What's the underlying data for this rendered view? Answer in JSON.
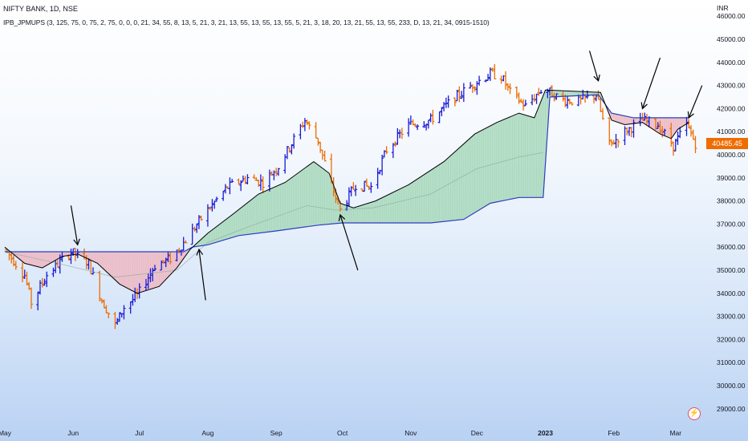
{
  "header": {
    "symbol_line": "NIFTY BANK, 1D, NSE",
    "indicator_line": "IPB_JPMUPS (3, 125, 75, 0, 75, 2, 75, 0, 0, 0, 21, 34, 55, 8, 13, 5, 21, 3, 21, 13, 55, 13, 55, 13, 55, 5, 21, 3, 18, 20, 13, 21, 55, 13, 55, 233, D, 13, 21, 34, 0915-1510)"
  },
  "price_axis": {
    "currency": "INR"
  },
  "last_price": "40485.45",
  "colors": {
    "up_bar": "#1a1ad6",
    "down_bar": "#ef6c00",
    "bull_cloud": "#a8d8bb",
    "bear_cloud": "#ecb9c3",
    "baseline": "#2d3dbf",
    "upper_band": "#000000",
    "price_tag": "#ef6c00"
  },
  "icons": {
    "alert": "lightning-bolt-icon"
  },
  "chart_data": {
    "type": "bar",
    "subtype": "ohlc",
    "y_ticks": [
      29000,
      30000,
      31000,
      32000,
      33000,
      34000,
      35000,
      36000,
      37000,
      38000,
      39000,
      40000,
      41000,
      42000,
      43000,
      44000,
      45000,
      46000
    ],
    "y_tick_labels": [
      "29000.00",
      "30000.00",
      "31000.00",
      "32000.00",
      "33000.00",
      "34000.00",
      "35000.00",
      "36000.00",
      "37000.00",
      "38000.00",
      "39000.00",
      "40000.00",
      "41000.00",
      "42000.00",
      "43000.00",
      "44000.00",
      "45000.00",
      "46000.00"
    ],
    "ylim": [
      28300,
      46700
    ],
    "x_labels": [
      {
        "text": "May",
        "date": "2022-05-01"
      },
      {
        "text": "Jun",
        "date": "2022-06-01"
      },
      {
        "text": "Jul",
        "date": "2022-07-01"
      },
      {
        "text": "Aug",
        "date": "2022-08-01"
      },
      {
        "text": "Sep",
        "date": "2022-09-01"
      },
      {
        "text": "Oct",
        "date": "2022-10-01"
      },
      {
        "text": "Nov",
        "date": "2022-11-01"
      },
      {
        "text": "Dec",
        "date": "2022-12-01"
      },
      {
        "text": "2023",
        "date": "2023-01-01"
      },
      {
        "text": "Feb",
        "date": "2023-02-01"
      },
      {
        "text": "Mar",
        "date": "2023-03-01"
      }
    ],
    "xlim": [
      "2022-05-01",
      "2023-03-12"
    ],
    "price_path": [
      [
        "2022-05-01",
        35900
      ],
      [
        "2022-05-10",
        34800
      ],
      [
        "2022-05-13",
        33600
      ],
      [
        "2022-05-20",
        34800
      ],
      [
        "2022-05-31",
        35800
      ],
      [
        "2022-06-08",
        35300
      ],
      [
        "2022-06-14",
        33700
      ],
      [
        "2022-06-20",
        32600
      ],
      [
        "2022-06-24",
        33400
      ],
      [
        "2022-06-30",
        33900
      ],
      [
        "2022-07-08",
        35200
      ],
      [
        "2022-07-15",
        35500
      ],
      [
        "2022-07-22",
        36300
      ],
      [
        "2022-07-31",
        37500
      ],
      [
        "2022-08-10",
        38600
      ],
      [
        "2022-08-19",
        39000
      ],
      [
        "2022-08-26",
        38800
      ],
      [
        "2022-09-02",
        39500
      ],
      [
        "2022-09-14",
        41500
      ],
      [
        "2022-09-20",
        40600
      ],
      [
        "2022-09-26",
        38700
      ],
      [
        "2022-09-30",
        37600
      ],
      [
        "2022-10-07",
        38700
      ],
      [
        "2022-10-14",
        38600
      ],
      [
        "2022-10-21",
        40200
      ],
      [
        "2022-10-31",
        41300
      ],
      [
        "2022-11-10",
        41500
      ],
      [
        "2022-11-20",
        42400
      ],
      [
        "2022-11-30",
        43100
      ],
      [
        "2022-12-07",
        43500
      ],
      [
        "2022-12-12",
        43400
      ],
      [
        "2022-12-16",
        42700
      ],
      [
        "2022-12-23",
        42100
      ],
      [
        "2022-12-31",
        42900
      ],
      [
        "2023-01-08",
        42400
      ],
      [
        "2023-01-16",
        42300
      ],
      [
        "2023-01-24",
        42600
      ],
      [
        "2023-01-30",
        40400
      ],
      [
        "2023-02-06",
        41000
      ],
      [
        "2023-02-14",
        41500
      ],
      [
        "2023-02-21",
        41300
      ],
      [
        "2023-02-28",
        40400
      ],
      [
        "2023-03-06",
        41300
      ],
      [
        "2023-03-10",
        40485
      ]
    ],
    "series": [
      {
        "name": "baseline",
        "points": [
          [
            "2022-05-01",
            35800
          ],
          [
            "2022-07-21",
            35800
          ],
          [
            "2022-07-25",
            36000
          ],
          [
            "2022-08-01",
            36100
          ],
          [
            "2022-08-15",
            36500
          ],
          [
            "2022-09-01",
            36700
          ],
          [
            "2022-09-20",
            36950
          ],
          [
            "2022-10-01",
            37050
          ],
          [
            "2022-10-20",
            37050
          ],
          [
            "2022-11-10",
            37050
          ],
          [
            "2022-11-25",
            37200
          ],
          [
            "2022-12-07",
            37900
          ],
          [
            "2022-12-20",
            38150
          ],
          [
            "2022-12-31",
            38150
          ],
          [
            "2023-01-03",
            42500
          ],
          [
            "2023-01-25",
            42600
          ],
          [
            "2023-01-31",
            41800
          ],
          [
            "2023-02-10",
            41600
          ],
          [
            "2023-02-22",
            41600
          ],
          [
            "2023-03-07",
            41600
          ]
        ]
      },
      {
        "name": "upper_band",
        "points": [
          [
            "2022-05-01",
            36000
          ],
          [
            "2022-05-10",
            35300
          ],
          [
            "2022-05-18",
            35100
          ],
          [
            "2022-05-27",
            35600
          ],
          [
            "2022-06-03",
            35700
          ],
          [
            "2022-06-12",
            35300
          ],
          [
            "2022-06-22",
            34400
          ],
          [
            "2022-06-30",
            34000
          ],
          [
            "2022-07-10",
            34300
          ],
          [
            "2022-07-18",
            35100
          ],
          [
            "2022-07-24",
            35900
          ],
          [
            "2022-08-01",
            36600
          ],
          [
            "2022-08-12",
            37400
          ],
          [
            "2022-08-24",
            38300
          ],
          [
            "2022-09-05",
            38800
          ],
          [
            "2022-09-18",
            39700
          ],
          [
            "2022-09-25",
            39200
          ],
          [
            "2022-09-30",
            37900
          ],
          [
            "2022-10-06",
            37700
          ],
          [
            "2022-10-16",
            38000
          ],
          [
            "2022-10-31",
            38700
          ],
          [
            "2022-11-16",
            39700
          ],
          [
            "2022-11-30",
            40900
          ],
          [
            "2022-12-10",
            41400
          ],
          [
            "2022-12-20",
            41800
          ],
          [
            "2022-12-27",
            41600
          ],
          [
            "2023-01-01",
            42800
          ],
          [
            "2023-01-26",
            42700
          ],
          [
            "2023-01-31",
            41500
          ],
          [
            "2023-02-06",
            41300
          ],
          [
            "2023-02-14",
            41400
          ],
          [
            "2023-02-22",
            40900
          ],
          [
            "2023-02-27",
            40700
          ],
          [
            "2023-03-02",
            41100
          ],
          [
            "2023-03-07",
            41400
          ]
        ]
      },
      {
        "name": "midline",
        "points": [
          [
            "2022-05-01",
            35800
          ],
          [
            "2022-05-25",
            35300
          ],
          [
            "2022-06-20",
            34700
          ],
          [
            "2022-07-18",
            35000
          ],
          [
            "2022-08-01",
            36200
          ],
          [
            "2022-08-20",
            36900
          ],
          [
            "2022-09-15",
            37800
          ],
          [
            "2022-09-28",
            37600
          ],
          [
            "2022-10-15",
            37700
          ],
          [
            "2022-11-10",
            38300
          ],
          [
            "2022-12-01",
            39400
          ],
          [
            "2022-12-20",
            39900
          ],
          [
            "2022-12-31",
            40100
          ]
        ]
      }
    ],
    "annotations": [
      {
        "type": "arrow",
        "from": [
          "2022-05-31",
          37800
        ],
        "to": [
          "2022-06-03",
          36100
        ]
      },
      {
        "type": "arrow",
        "from": [
          "2022-07-31",
          33700
        ],
        "to": [
          "2022-07-28",
          35900
        ]
      },
      {
        "type": "arrow",
        "from": [
          "2022-10-08",
          35000
        ],
        "to": [
          "2022-09-30",
          37400
        ]
      },
      {
        "type": "arrow",
        "from": [
          "2023-01-21",
          44500
        ],
        "to": [
          "2023-01-25",
          43200
        ]
      },
      {
        "type": "arrow",
        "from": [
          "2023-02-22",
          44200
        ],
        "to": [
          "2023-02-14",
          42000
        ]
      },
      {
        "type": "arrow",
        "from": [
          "2023-03-13",
          43000
        ],
        "to": [
          "2023-03-07",
          41600
        ]
      }
    ]
  }
}
